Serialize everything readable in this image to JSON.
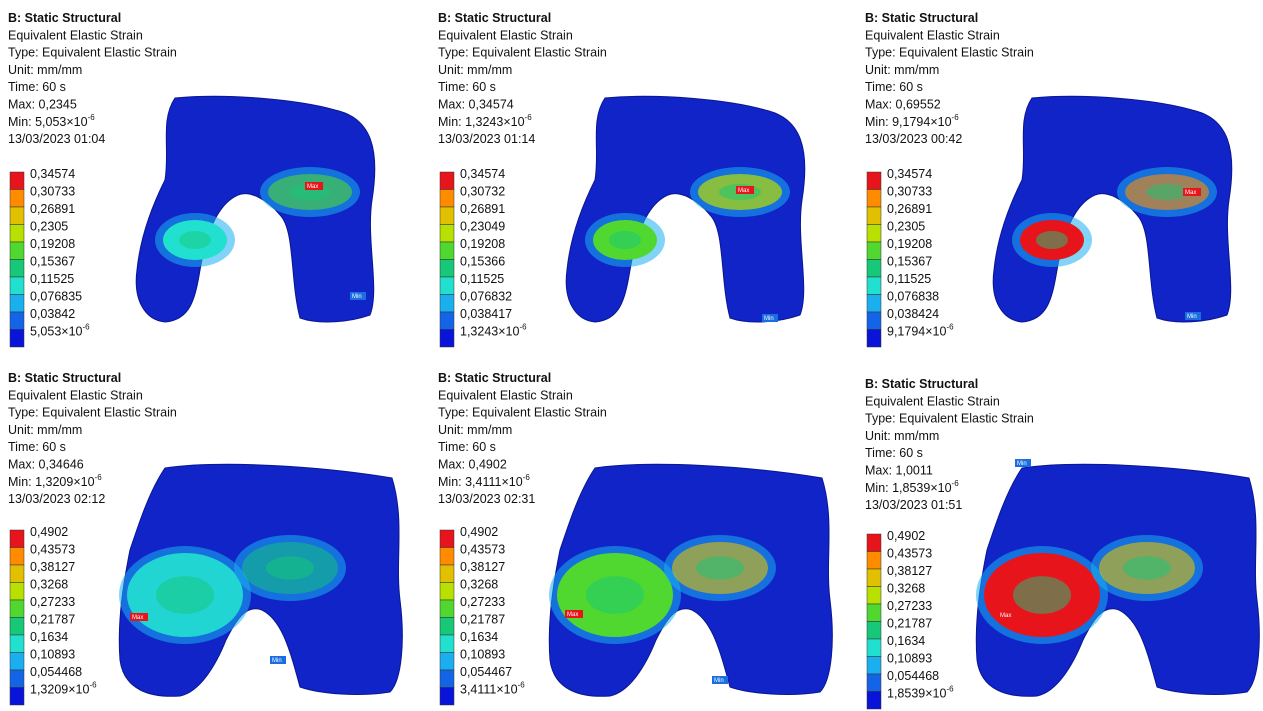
{
  "panels": [
    {
      "title": "B: Static Structural",
      "result": "Equivalent Elastic Strain",
      "type": "Type: Equivalent Elastic Strain",
      "unit": "Unit: mm/mm",
      "time": "Time: 60 s",
      "max": "Max: 0,2345",
      "min": {
        "text": "Min: 5,053×10",
        "exp": "-6"
      },
      "date": "13/03/2023 01:04",
      "legend": [
        "0,34574",
        "0,30733",
        "0,26891",
        "0,2305",
        "0,19208",
        "0,15367",
        "0,11525",
        "0,076835",
        "0,03842",
        {
          "text": "5,053×10",
          "exp": "-6"
        }
      ],
      "max_tag": "Max",
      "min_tag": "Min"
    },
    {
      "title": "B: Static Structural",
      "result": "Equivalent Elastic Strain",
      "type": "Type: Equivalent Elastic Strain",
      "unit": "Unit: mm/mm",
      "time": "Time: 60 s",
      "max": "Max: 0,34574",
      "min": {
        "text": "Min: 1,3243×10",
        "exp": "-6"
      },
      "date": "13/03/2023 01:14",
      "legend": [
        "0,34574",
        "0,30732",
        "0,26891",
        "0,23049",
        "0,19208",
        "0,15366",
        "0,11525",
        "0,076832",
        "0,038417",
        {
          "text": "1,3243×10",
          "exp": "-6"
        }
      ],
      "max_tag": "Max",
      "min_tag": "Min"
    },
    {
      "title": "B: Static Structural",
      "result": "Equivalent Elastic Strain",
      "type": "Type: Equivalent Elastic Strain",
      "unit": "Unit: mm/mm",
      "time": "Time: 60 s",
      "max": "Max: 0,69552",
      "min": {
        "text": "Min: 9,1794×10",
        "exp": "-6"
      },
      "date": "13/03/2023 00:42",
      "legend": [
        "0,34574",
        "0,30733",
        "0,26891",
        "0,2305",
        "0,19208",
        "0,15367",
        "0,11525",
        "0,076838",
        "0,038424",
        {
          "text": "9,1794×10",
          "exp": "-6"
        }
      ],
      "max_tag": "Max",
      "min_tag": "Min"
    },
    {
      "title": "B: Static Structural",
      "result": "Equivalent Elastic Strain",
      "type": "Type: Equivalent Elastic Strain",
      "unit": "Unit: mm/mm",
      "time": "Time: 60 s",
      "max": "Max: 0,34646",
      "min": {
        "text": "Min: 1,3209×10",
        "exp": "-6"
      },
      "date": "13/03/2023 02:12",
      "legend": [
        "0,4902",
        "0,43573",
        "0,38127",
        "0,3268",
        "0,27233",
        "0,21787",
        "0,1634",
        "0,10893",
        "0,054468",
        {
          "text": "1,3209×10",
          "exp": "-6"
        }
      ],
      "max_tag": "Max",
      "min_tag": "Min"
    },
    {
      "title": "B: Static Structural",
      "result": "Equivalent Elastic Strain",
      "type": "Type: Equivalent Elastic Strain",
      "unit": "Unit: mm/mm",
      "time": "Time: 60 s",
      "max": "Max: 0,4902",
      "min": {
        "text": "Min: 3,4111×10",
        "exp": "-6"
      },
      "date": "13/03/2023 02:31",
      "legend": [
        "0,4902",
        "0,43573",
        "0,38127",
        "0,3268",
        "0,27233",
        "0,21787",
        "0,1634",
        "0,10893",
        "0,054467",
        {
          "text": "3,4111×10",
          "exp": "-6"
        }
      ],
      "max_tag": "Max",
      "min_tag": "Min"
    },
    {
      "title": "B: Static Structural",
      "result": "Equivalent Elastic Strain",
      "type": "Type: Equivalent Elastic Strain",
      "unit": "Unit: mm/mm",
      "time": "Time: 60 s",
      "max": "Max: 1,0011",
      "min": {
        "text": "Min: 1,8539×10",
        "exp": "-6"
      },
      "date": "13/03/2023 01:51",
      "legend": [
        "0,4902",
        "0,43573",
        "0,38127",
        "0,3268",
        "0,27233",
        "0,21787",
        "0,1634",
        "0,10893",
        "0,054468",
        {
          "text": "1,8539×10",
          "exp": "-6"
        }
      ],
      "max_tag": "Max",
      "min_tag": "Min"
    }
  ]
}
